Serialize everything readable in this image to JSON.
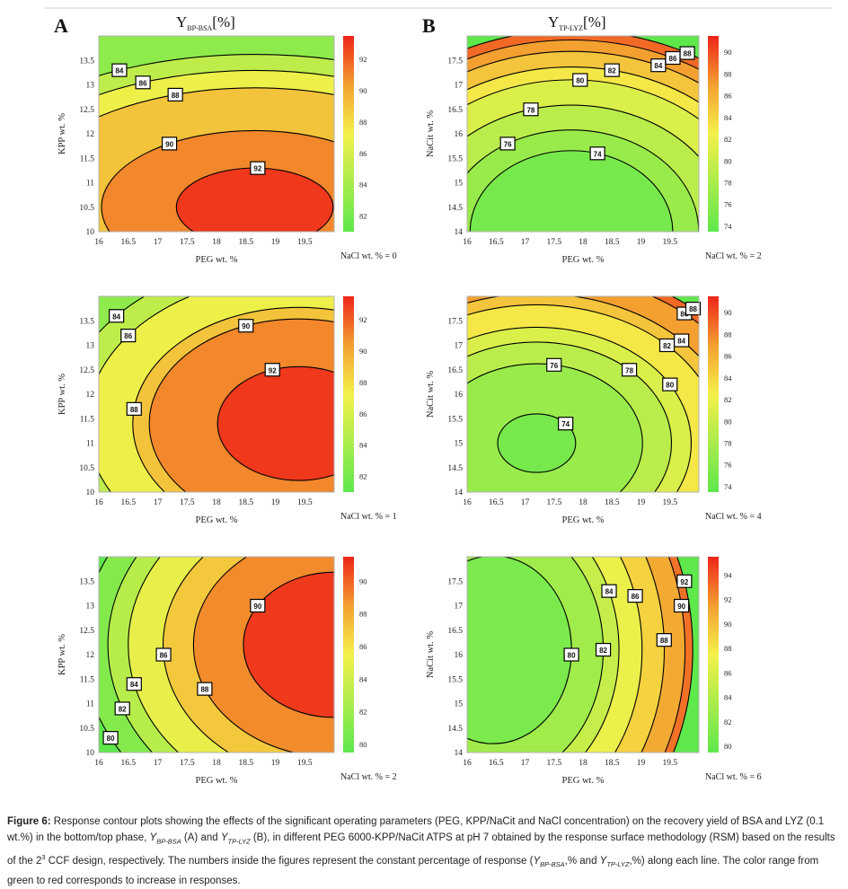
{
  "colors": {
    "low": "#5ee84c",
    "mid": "#f4f04a",
    "orange": "#f3a030",
    "high": "#ee2418",
    "contour_line": "#000000"
  },
  "panel_labels": {
    "A": "A",
    "B": "B"
  },
  "column_titles": {
    "A_main": "Y",
    "A_sub": "BP-BSA",
    "A_unit": "[%]",
    "B_main": "Y",
    "B_sub": "TP-LYZ",
    "B_unit": "[%]"
  },
  "chart_data": [
    {
      "type": "contour",
      "column": "A",
      "row": 0,
      "xlabel": "PEG wt. %",
      "ylabel": "KPP wt. %",
      "xlim": [
        16,
        20
      ],
      "ylim": [
        10,
        14
      ],
      "x_ticks": [
        "16",
        "16.5",
        "17",
        "17.5",
        "18",
        "18.5",
        "19",
        "19.5"
      ],
      "y_ticks": [
        "10",
        "10.5",
        "11",
        "11.5",
        "12",
        "12.5",
        "13",
        "13.5"
      ],
      "colorbar": {
        "ticks": [
          "92",
          "90",
          "88",
          "86",
          "84",
          "82"
        ],
        "min": 81,
        "max": 93.5
      },
      "condition_label": "NaCl wt. % = 0",
      "center": [
        18.65,
        10.5
      ],
      "ellipse_ratio": 0.5,
      "contours": [
        {
          "label": "92",
          "level": 92,
          "label_x": 18.7,
          "label_y": 11.3
        },
        {
          "label": "90",
          "level": 90,
          "label_x": 17.2,
          "label_y": 11.8
        },
        {
          "label": "88",
          "level": 88,
          "label_x": 17.3,
          "label_y": 12.8
        },
        {
          "label": "86",
          "level": 86,
          "label_x": 16.75,
          "label_y": 13.05
        },
        {
          "label": "84",
          "level": 84,
          "label_x": 16.35,
          "label_y": 13.3
        }
      ]
    },
    {
      "type": "contour",
      "column": "A",
      "row": 1,
      "xlabel": "PEG wt. %",
      "ylabel": "KPP wt. %",
      "xlim": [
        16,
        20
      ],
      "ylim": [
        10,
        14
      ],
      "x_ticks": [
        "16",
        "16.5",
        "17",
        "17.5",
        "18",
        "18.5",
        "19",
        "19.5"
      ],
      "y_ticks": [
        "10",
        "10.5",
        "11",
        "11.5",
        "12",
        "12.5",
        "13",
        "13.5"
      ],
      "colorbar": {
        "ticks": [
          "92",
          "90",
          "88",
          "86",
          "84",
          "82"
        ],
        "min": 81,
        "max": 93.5
      },
      "condition_label": "NaCl wt. % = 1",
      "center": [
        19.4,
        11.4
      ],
      "ellipse_ratio": 0.7,
      "contours": [
        {
          "label": "92",
          "level": 92,
          "label_x": 18.95,
          "label_y": 12.5
        },
        {
          "label": "90",
          "level": 90,
          "label_x": 18.5,
          "label_y": 13.4
        },
        {
          "label": "88",
          "level": 88,
          "label_x": 16.6,
          "label_y": 11.7
        },
        {
          "label": "86",
          "level": 86,
          "label_x": 16.5,
          "label_y": 13.2
        },
        {
          "label": "84",
          "level": 84,
          "label_x": 16.3,
          "label_y": 13.6
        }
      ]
    },
    {
      "type": "contour",
      "column": "A",
      "row": 2,
      "xlabel": "PEG wt. %",
      "ylabel": "KPP wt. %",
      "xlim": [
        16,
        20
      ],
      "ylim": [
        10,
        14
      ],
      "x_ticks": [
        "16",
        "16.5",
        "17",
        "17.5",
        "18",
        "18.5",
        "19",
        "19.5"
      ],
      "y_ticks": [
        "10",
        "10.5",
        "11",
        "11.5",
        "12",
        "12.5",
        "13",
        "13.5"
      ],
      "colorbar": {
        "ticks": [
          "90",
          "88",
          "86",
          "84",
          "82",
          "80"
        ],
        "min": 79.5,
        "max": 91.5
      },
      "condition_label": "NaCl wt. % = 2",
      "center": [
        20,
        12.2
      ],
      "ellipse_ratio": 0.8,
      "contours": [
        {
          "label": "90",
          "level": 90,
          "label_x": 18.7,
          "label_y": 13.0
        },
        {
          "label": "88",
          "level": 88,
          "label_x": 17.8,
          "label_y": 11.3
        },
        {
          "label": "86",
          "level": 86,
          "label_x": 17.1,
          "label_y": 12.0
        },
        {
          "label": "84",
          "level": 84,
          "label_x": 16.6,
          "label_y": 11.4
        },
        {
          "label": "82",
          "level": 82,
          "label_x": 16.4,
          "label_y": 10.9
        },
        {
          "label": "80",
          "level": 80,
          "label_x": 16.2,
          "label_y": 10.3
        }
      ]
    },
    {
      "type": "contour",
      "column": "B",
      "row": 0,
      "xlabel": "PEG wt. %",
      "ylabel": "NaCit wt. %",
      "xlim": [
        16,
        20
      ],
      "ylim": [
        14,
        18
      ],
      "x_ticks": [
        "16",
        "16.5",
        "17",
        "17.5",
        "18",
        "18.5",
        "19",
        "19.5"
      ],
      "y_ticks": [
        "14",
        "14.5",
        "15",
        "15.5",
        "16",
        "16.5",
        "17",
        "17.5"
      ],
      "colorbar": {
        "ticks": [
          "90",
          "88",
          "86",
          "84",
          "82",
          "80",
          "78",
          "76",
          "74"
        ],
        "min": 73.5,
        "max": 91.5
      },
      "condition_label": "NaCl wt. % = 2",
      "center": [
        17.8,
        14.0
      ],
      "ellipse_ratio": 0.8,
      "contours": [
        {
          "label": "74",
          "level": 74,
          "label_x": 18.25,
          "label_y": 15.6
        },
        {
          "label": "76",
          "level": 76,
          "label_x": 16.7,
          "label_y": 15.8
        },
        {
          "label": "78",
          "level": 78,
          "label_x": 17.1,
          "label_y": 16.5
        },
        {
          "label": "80",
          "level": 80,
          "label_x": 17.95,
          "label_y": 17.1
        },
        {
          "label": "82",
          "level": 82,
          "label_x": 18.5,
          "label_y": 17.3
        },
        {
          "label": "84",
          "level": 84,
          "label_x": 19.3,
          "label_y": 17.4
        },
        {
          "label": "86",
          "level": 86,
          "label_x": 19.55,
          "label_y": 17.55
        },
        {
          "label": "88",
          "level": 88,
          "label_x": 19.8,
          "label_y": 17.65
        }
      ]
    },
    {
      "type": "contour",
      "column": "B",
      "row": 1,
      "xlabel": "PEG wt. %",
      "ylabel": "NaCit wt. %",
      "xlim": [
        16,
        20
      ],
      "ylim": [
        14,
        18
      ],
      "x_ticks": [
        "16",
        "16.5",
        "17",
        "17.5",
        "18",
        "18.5",
        "19",
        "19.5"
      ],
      "y_ticks": [
        "14",
        "14.5",
        "15",
        "15.5",
        "16",
        "16.5",
        "17",
        "17.5"
      ],
      "colorbar": {
        "ticks": [
          "90",
          "88",
          "86",
          "84",
          "82",
          "80",
          "78",
          "76",
          "74"
        ],
        "min": 73.5,
        "max": 91.5
      },
      "condition_label": "NaCl wt. % = 4",
      "center": [
        17.2,
        15.0
      ],
      "ellipse_ratio": 0.75,
      "contours": [
        {
          "label": "74",
          "level": 74,
          "label_x": 17.7,
          "label_y": 15.4
        },
        {
          "label": "76",
          "level": 76,
          "label_x": 17.5,
          "label_y": 16.6
        },
        {
          "label": "78",
          "level": 78,
          "label_x": 18.8,
          "label_y": 16.5
        },
        {
          "label": "80",
          "level": 80,
          "label_x": 19.5,
          "label_y": 16.2
        },
        {
          "label": "82",
          "level": 82,
          "label_x": 19.45,
          "label_y": 17.0
        },
        {
          "label": "84",
          "level": 84,
          "label_x": 19.7,
          "label_y": 17.1
        },
        {
          "label": "86",
          "level": 86,
          "label_x": 19.75,
          "label_y": 17.65
        },
        {
          "label": "88",
          "level": 88,
          "label_x": 19.9,
          "label_y": 17.75
        }
      ]
    },
    {
      "type": "contour",
      "column": "B",
      "row": 2,
      "xlabel": "PEG wt. %",
      "ylabel": "NaCit wt. %",
      "xlim": [
        16,
        20
      ],
      "ylim": [
        14,
        18
      ],
      "x_ticks": [
        "16",
        "16.5",
        "17",
        "17.5",
        "18",
        "18.5",
        "19",
        "19.5"
      ],
      "y_ticks": [
        "14",
        "14.5",
        "15",
        "15.5",
        "16",
        "16.5",
        "17",
        "17.5"
      ],
      "colorbar": {
        "ticks": [
          "94",
          "92",
          "90",
          "88",
          "86",
          "84",
          "82",
          "80"
        ],
        "min": 79.5,
        "max": 95.5
      },
      "condition_label": "NaCl wt. % = 6",
      "center": [
        16.45,
        16.1
      ],
      "ellipse_ratio": 1.2,
      "contours": [
        {
          "label": "80",
          "level": 80,
          "label_x": 17.8,
          "label_y": 16.0
        },
        {
          "label": "82",
          "level": 82,
          "label_x": 18.35,
          "label_y": 16.1
        },
        {
          "label": "84",
          "level": 84,
          "label_x": 18.45,
          "label_y": 17.3
        },
        {
          "label": "86",
          "level": 86,
          "label_x": 18.9,
          "label_y": 17.2
        },
        {
          "label": "88",
          "level": 88,
          "label_x": 19.4,
          "label_y": 16.3
        },
        {
          "label": "90",
          "level": 90,
          "label_x": 19.7,
          "label_y": 17.0
        },
        {
          "label": "92",
          "level": 92,
          "label_x": 19.75,
          "label_y": 17.5
        }
      ]
    }
  ],
  "caption": {
    "fig_label": "Figure 6:",
    "p1": " Response contour plots showing the effects of the significant operating parameters (PEG, KPP/NaCit and NaCl concentration) on the recovery yield of BSA and LYZ (0.1 wt.%) in the bottom/top phase, ",
    "y1": "Y",
    "y1_sub": "BP-BSA",
    "p2": " (A) and ",
    "y2": "Y",
    "y2_sub": "TP-LYZ",
    "p3": " (B), in different PEG 6000-KPP/NaCit ATPS at pH 7 obtained by the response surface methodology (RSM) based on the results of the 2",
    "sup": "3",
    "p4": " CCF design, respectively. The numbers inside the figures represent the constant percentage of response (",
    "y3": "Y",
    "y3_sub": "BP-BSA",
    "p5": ",% and ",
    "y4": "Y",
    "y4_sub": "TP-LYZ",
    "p6": ",%) along each line. The color range from green to red corresponds to increase in responses."
  }
}
